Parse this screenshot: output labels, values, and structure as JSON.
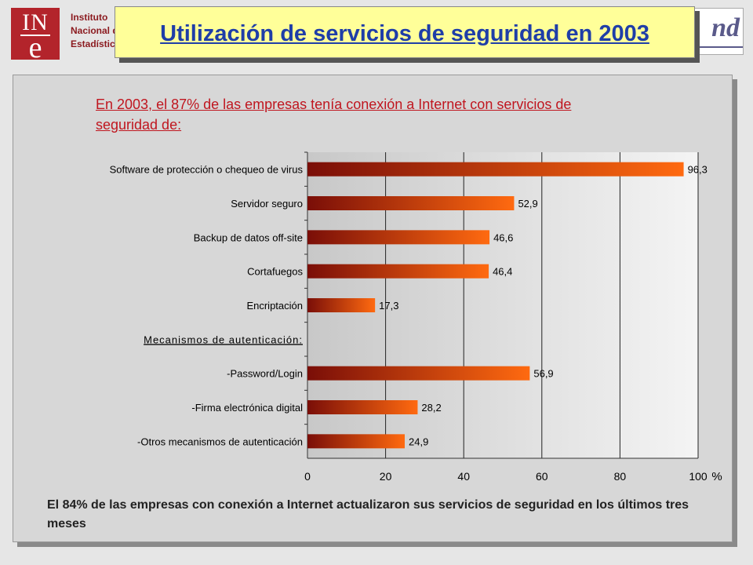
{
  "header": {
    "logo_top": "IN",
    "logo_bottom": "e",
    "institute_lines": [
      "Instituto",
      "Nacional de",
      "Estadística"
    ],
    "right_logo_text": "nd",
    "title": "Utilización de servicios de seguridad en 2003"
  },
  "subtitle": "En 2003, el 87% de las empresas tenía conexión a Internet con servicios de seguridad de:",
  "footer": "El 84% de las empresas con conexión a Internet actualizaron sus servicios de seguridad en los últimos tres meses",
  "chart_data": {
    "type": "bar",
    "orientation": "horizontal",
    "categories": [
      "Software de protección o chequeo de virus",
      "Servidor seguro",
      "Backup de datos off-site",
      "Cortafuegos",
      "Encriptación",
      "Mecanismos de autenticación:",
      "-Password/Login",
      "-Firma electrónica digital",
      "-Otros mecanismos de autenticación"
    ],
    "values": [
      96.3,
      52.9,
      46.6,
      46.4,
      17.3,
      null,
      56.9,
      28.2,
      24.9
    ],
    "value_labels": [
      "96,3",
      "52,9",
      "46,6",
      "46,4",
      "17,3",
      "",
      "56,9",
      "28,2",
      "24,9"
    ],
    "heading_category_index": 5,
    "xlim": [
      0,
      100
    ],
    "xticks": [
      0,
      20,
      40,
      60,
      80,
      100
    ],
    "xunit": "%",
    "grid": true,
    "colors": {
      "bar_dark": "#7a0e08",
      "bar_light": "#ff6a10",
      "plot_left": "#c8c8c8",
      "plot_right": "#f4f4f4"
    }
  }
}
